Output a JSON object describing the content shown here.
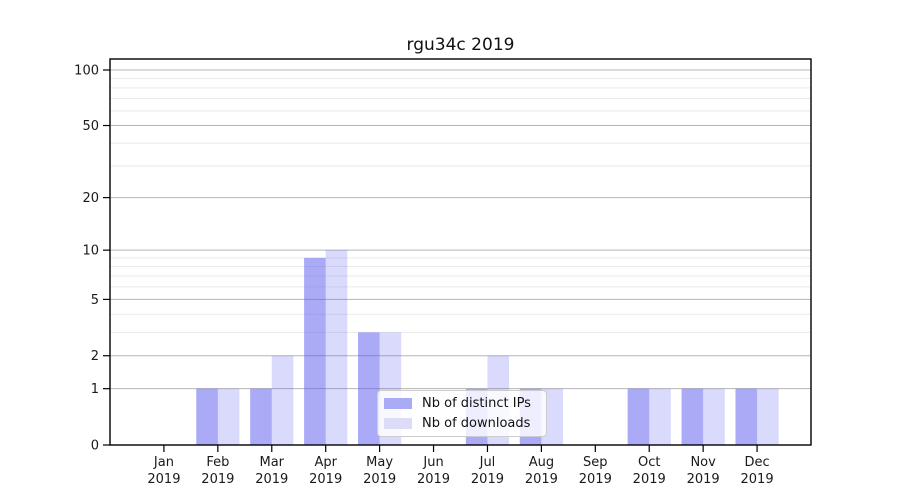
{
  "chart_data": {
    "type": "bar",
    "title": "rgu34c 2019",
    "categories": [
      "Jan",
      "Feb",
      "Mar",
      "Apr",
      "May",
      "Jun",
      "Jul",
      "Aug",
      "Sep",
      "Oct",
      "Nov",
      "Dec"
    ],
    "x_tick_year": "2019",
    "series": [
      {
        "name": "Nb of distinct IPs",
        "values": [
          0,
          1,
          1,
          9,
          3,
          0,
          1,
          1,
          0,
          1,
          1,
          1
        ],
        "color": "#5555f0",
        "fill_alpha": 0.5,
        "legend_swatch_color": "#aaaaf5"
      },
      {
        "name": "Nb of downloads",
        "values": [
          0,
          1,
          2,
          10,
          3,
          0,
          2,
          1,
          0,
          1,
          1,
          1
        ],
        "color": "#5555f0",
        "fill_alpha": 0.22,
        "legend_swatch_color": "#dcdcf8"
      }
    ],
    "y_axis": {
      "scale": "log10(value+1)",
      "ticks": [
        0,
        1,
        2,
        5,
        10,
        20,
        50,
        100
      ],
      "minor_gridlines": [
        3,
        4,
        6,
        7,
        8,
        9,
        30,
        40,
        60,
        70,
        80,
        90
      ],
      "range": [
        0,
        115
      ]
    },
    "legend": {
      "position": "lower-center"
    },
    "colors": {
      "major_grid": "#b5b5b5",
      "minor_grid": "#eaeaea",
      "spine": "#000000",
      "text": "#1a1a1a"
    }
  }
}
